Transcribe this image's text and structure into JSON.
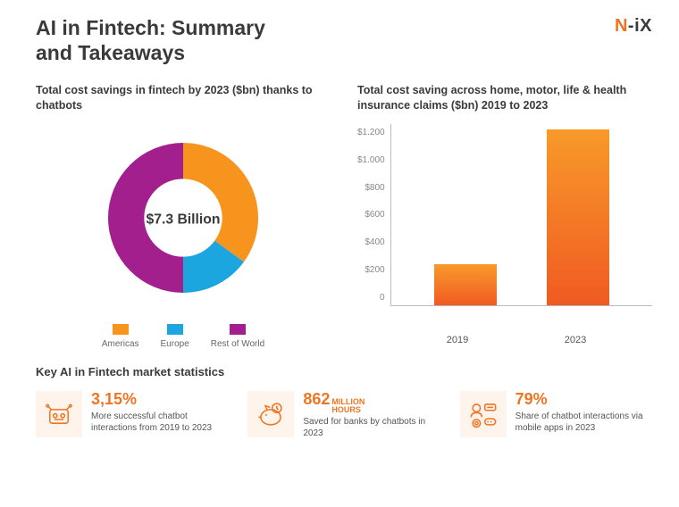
{
  "header": {
    "title": "AI in Fintech: Summary and Takeaways",
    "logo_n": "N",
    "logo_sep": "-",
    "logo_ix": "iX"
  },
  "donut": {
    "title": "Total cost savings in fintech by 2023 ($bn) thanks to chatbots",
    "center_label": "$7.3 Billion",
    "slices": [
      {
        "label": "Americas",
        "value": 35,
        "color": "#f7941e"
      },
      {
        "label": "Europe",
        "value": 15,
        "color": "#1ba6df"
      },
      {
        "label": "Rest of World",
        "value": 50,
        "color": "#a31f8e"
      }
    ],
    "inner_ratio": 0.52,
    "shadow_color": "#dddddd"
  },
  "bar": {
    "title": "Total cost saving across home, motor, life & health insurance claims ($bn) 2019 to 2023",
    "ymax": 1300,
    "ticks": [
      "$1.200",
      "$1.000",
      "$800",
      "$600",
      "$400",
      "$200",
      "0"
    ],
    "bars": [
      {
        "label": "2019",
        "value": 300
      },
      {
        "label": "2023",
        "value": 1280
      }
    ],
    "gradient_top": "#f89a2a",
    "gradient_bottom": "#f05a22"
  },
  "stats": {
    "title": "Key AI in Fintech market statistics",
    "items": [
      {
        "value": "3,15%",
        "suffix": "",
        "desc": "More successful chatbot interactions from 2019 to 2023"
      },
      {
        "value": "862",
        "suffix": "MILLION HOURS",
        "desc": "Saved for banks by chatbots in 2023"
      },
      {
        "value": "79%",
        "suffix": "",
        "desc": "Share of chatbot interactions via mobile apps in 2023"
      }
    ]
  },
  "colors": {
    "text": "#3a3a3a",
    "accent": "#f07522",
    "icon_bg": "#fff4eb"
  }
}
